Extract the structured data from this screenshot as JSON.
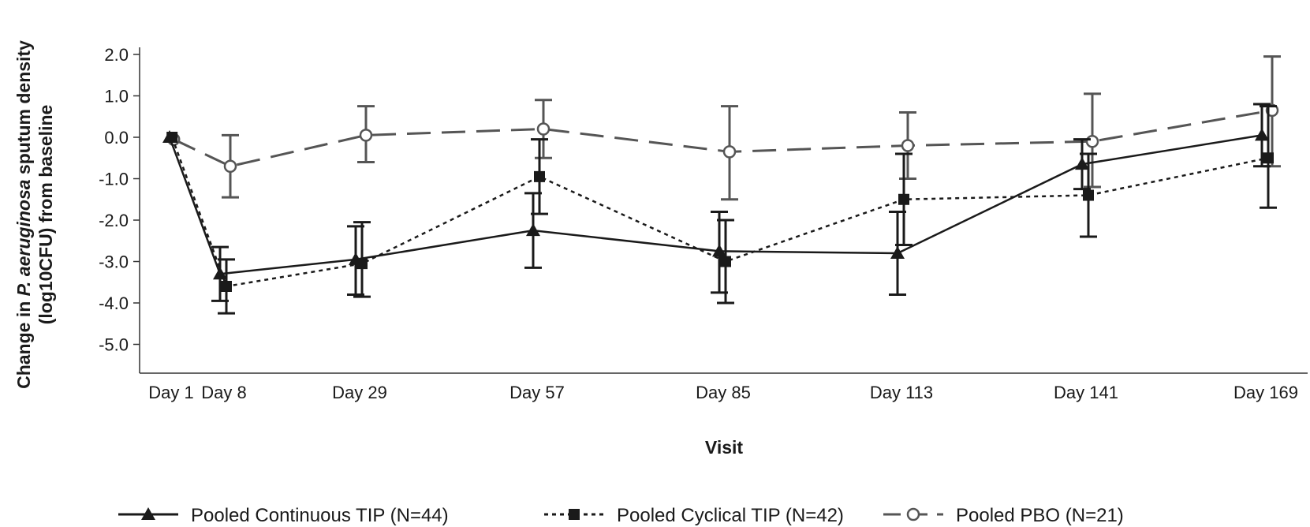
{
  "chart_data": {
    "type": "line",
    "categories": [
      "Day 1",
      "Day 8",
      "Day 29",
      "Day 57",
      "Day 85",
      "Day 113",
      "Day 141",
      "Day 169"
    ],
    "title": "",
    "xlabel": "Visit",
    "ylabel_line1_prefix": "Change in ",
    "ylabel_line1_italic": "P. aeruginosa",
    "ylabel_line1_suffix": " sputum density",
    "ylabel_line2": "(log10CFU) from baseline",
    "ylim": [
      -5.7,
      2.0
    ],
    "yticks": [
      "2.0",
      "1.0",
      "0.0",
      "-1.0",
      "-2.0",
      "-3.0",
      "-4.0",
      "-5.0"
    ],
    "ytick_values": [
      2,
      1,
      0,
      -1,
      -2,
      -3,
      -4,
      -5
    ],
    "legend_position": "bottom",
    "series": [
      {
        "name": "Pooled Continuous TIP (N=44)",
        "style": "solid",
        "marker": "triangle",
        "color": "#1a1a1a",
        "values": [
          0.0,
          -3.3,
          -2.95,
          -2.25,
          -2.75,
          -2.8,
          -0.65,
          0.05
        ],
        "err_low": [
          null,
          -3.95,
          -3.8,
          -3.15,
          -3.75,
          -3.8,
          -1.25,
          -0.7
        ],
        "err_high": [
          null,
          -2.65,
          -2.15,
          -1.35,
          -1.8,
          -1.8,
          -0.05,
          0.8
        ]
      },
      {
        "name": "Pooled Cyclical TIP (N=42)",
        "style": "dotted",
        "marker": "square",
        "color": "#1a1a1a",
        "values": [
          0.0,
          -3.6,
          -3.05,
          -0.95,
          -3.0,
          -1.5,
          -1.4,
          -0.5
        ],
        "err_low": [
          null,
          -4.25,
          -3.85,
          -1.85,
          -4.0,
          -2.6,
          -2.4,
          -1.7
        ],
        "err_high": [
          null,
          -2.95,
          -2.05,
          -0.05,
          -2.0,
          -0.4,
          -0.4,
          0.75
        ]
      },
      {
        "name": "Pooled PBO (N=21)",
        "style": "dashed",
        "marker": "open-circle",
        "color": "#555555",
        "values": [
          -0.05,
          -0.7,
          0.05,
          0.2,
          -0.35,
          -0.2,
          -0.1,
          0.65
        ],
        "err_low": [
          null,
          -1.45,
          -0.6,
          -0.5,
          -1.5,
          -1.0,
          -1.2,
          -0.7
        ],
        "err_high": [
          null,
          0.05,
          0.75,
          0.9,
          0.75,
          0.6,
          1.05,
          1.95
        ]
      }
    ]
  }
}
